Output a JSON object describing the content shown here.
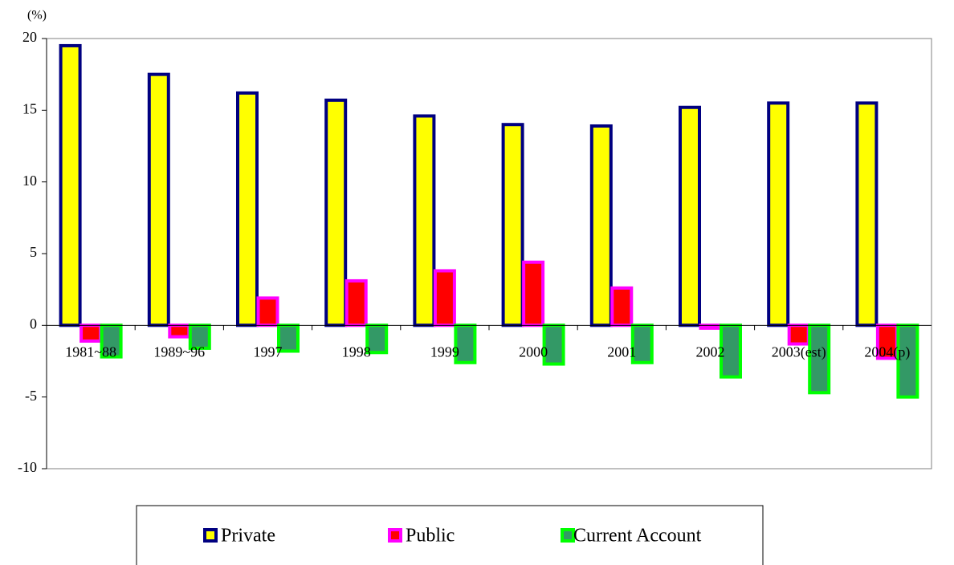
{
  "chart_data": {
    "type": "bar",
    "y_label": "(%)",
    "categories": [
      "1981~88",
      "1989~96",
      "1997",
      "1998",
      "1999",
      "2000",
      "2001",
      "2002",
      "2003(est)",
      "2004(p)"
    ],
    "series": [
      {
        "name": "Private",
        "color": "#ffff00",
        "edgecolor": "#000080",
        "values": [
          19.5,
          17.5,
          16.2,
          15.7,
          14.6,
          14.0,
          13.9,
          15.2,
          15.5,
          15.5
        ]
      },
      {
        "name": "Public",
        "color": "#ff0000",
        "edgecolor": "#ff00ff",
        "values": [
          -1.1,
          -0.8,
          1.9,
          3.1,
          3.8,
          4.4,
          2.6,
          -0.2,
          -1.3,
          -2.3
        ]
      },
      {
        "name": "Current Account",
        "color": "#339966",
        "edgecolor": "#00ff00",
        "values": [
          -2.2,
          -1.6,
          -1.8,
          -1.9,
          -2.6,
          -2.7,
          -2.6,
          -3.6,
          -4.7,
          -5.0
        ]
      }
    ],
    "ylim": [
      -10,
      20
    ],
    "yticks": [
      -10,
      -5,
      0,
      5,
      10,
      15,
      20
    ],
    "grid": false
  }
}
